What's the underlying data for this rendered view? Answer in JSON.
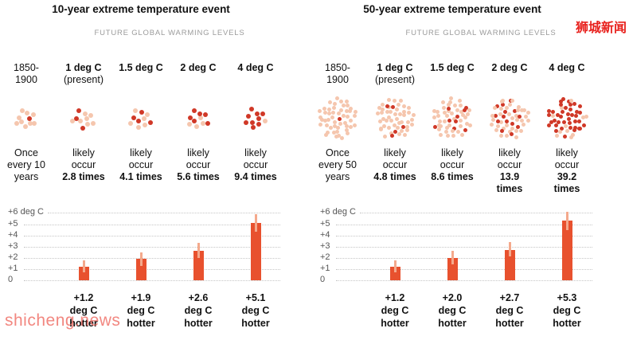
{
  "watermarks": {
    "bottom_left": "shicheng.news",
    "top_right": "狮城新闻"
  },
  "colors": {
    "bar": "#e8512e",
    "whisker": "#f4a98c",
    "dot_light": "#f5c6ae",
    "dot_dark": "#d03827",
    "grid": "#c6c6c6",
    "title": "#111111",
    "warming_label": "#9b9b9b",
    "axis_text": "#555555",
    "watermark_pink": "#ef6a61",
    "watermark_red": "#e8211d"
  },
  "axis": {
    "labels": [
      "+6 deg C",
      "+5",
      "+4",
      "+3",
      "+2",
      "+1",
      "0"
    ],
    "values": [
      6,
      5,
      4,
      3,
      2,
      1,
      0
    ],
    "ylim": [
      0,
      6
    ]
  },
  "chart_data": [
    {
      "type": "bar",
      "title": "10-year extreme temperature event",
      "warming_label": "FUTURE GLOBAL WARMING LEVELS",
      "ylabel": "deg C",
      "ylim": [
        0,
        6
      ],
      "columns": [
        {
          "header": [
            "1850-",
            "1900"
          ],
          "header_bold": false,
          "dots_total": 10,
          "dots_dark": 1,
          "freq_lines": [
            "Once",
            "every 10",
            "years"
          ],
          "freq_bold_lines": []
        },
        {
          "header": [
            "1 deg C",
            "(present)"
          ],
          "header_bold": true,
          "dots_total": 10,
          "dots_dark": 3,
          "freq_lines": [
            "likely",
            "occur"
          ],
          "freq_bold_lines": [
            "2.8 times"
          ],
          "bar_value": 1.2,
          "bar_lo": 0.7,
          "bar_hi": 1.8,
          "bar_label": [
            "+1.2",
            "deg C",
            "hotter"
          ]
        },
        {
          "header": [
            "1.5 deg C"
          ],
          "header_bold": true,
          "dots_total": 10,
          "dots_dark": 4,
          "freq_lines": [
            "likely",
            "occur"
          ],
          "freq_bold_lines": [
            "4.1 times"
          ],
          "bar_value": 1.9,
          "bar_lo": 1.3,
          "bar_hi": 2.5,
          "bar_label": [
            "+1.9",
            "deg C",
            "hotter"
          ]
        },
        {
          "header": [
            "2 deg C"
          ],
          "header_bold": true,
          "dots_total": 10,
          "dots_dark": 6,
          "freq_lines": [
            "likely",
            "occur"
          ],
          "freq_bold_lines": [
            "5.6 times"
          ],
          "bar_value": 2.6,
          "bar_lo": 2.0,
          "bar_hi": 3.3,
          "bar_label": [
            "+2.6",
            "deg C",
            "hotter"
          ]
        },
        {
          "header": [
            "4 deg C"
          ],
          "header_bold": true,
          "dots_total": 10,
          "dots_dark": 9,
          "freq_lines": [
            "likely",
            "occur"
          ],
          "freq_bold_lines": [
            "9.4 times"
          ],
          "bar_value": 5.1,
          "bar_lo": 4.3,
          "bar_hi": 5.9,
          "bar_label": [
            "+5.1",
            "deg C",
            "hotter"
          ]
        }
      ]
    },
    {
      "type": "bar",
      "title": "50-year extreme temperature event",
      "warming_label": "FUTURE GLOBAL WARMING LEVELS",
      "ylabel": "deg C",
      "ylim": [
        0,
        6
      ],
      "columns": [
        {
          "header": [
            "1850-",
            "1900"
          ],
          "header_bold": false,
          "dots_total": 50,
          "dots_dark": 1,
          "freq_lines": [
            "Once",
            "every 50",
            "years"
          ],
          "freq_bold_lines": []
        },
        {
          "header": [
            "1 deg C",
            "(present)"
          ],
          "header_bold": true,
          "dots_total": 50,
          "dots_dark": 5,
          "freq_lines": [
            "likely",
            "occur"
          ],
          "freq_bold_lines": [
            "4.8 times"
          ],
          "bar_value": 1.2,
          "bar_lo": 0.7,
          "bar_hi": 1.8,
          "bar_label": [
            "+1.2",
            "deg C",
            "hotter"
          ]
        },
        {
          "header": [
            "1.5 deg C"
          ],
          "header_bold": true,
          "dots_total": 50,
          "dots_dark": 9,
          "freq_lines": [
            "likely",
            "occur"
          ],
          "freq_bold_lines": [
            "8.6 times"
          ],
          "bar_value": 2.0,
          "bar_lo": 1.4,
          "bar_hi": 2.6,
          "bar_label": [
            "+2.0",
            "deg C",
            "hotter"
          ]
        },
        {
          "header": [
            "2 deg C"
          ],
          "header_bold": true,
          "dots_total": 50,
          "dots_dark": 14,
          "freq_lines": [
            "likely",
            "occur"
          ],
          "freq_bold_lines": [
            "13.9",
            "times"
          ],
          "bar_value": 2.7,
          "bar_lo": 2.1,
          "bar_hi": 3.4,
          "bar_label": [
            "+2.7",
            "deg C",
            "hotter"
          ]
        },
        {
          "header": [
            "4 deg C"
          ],
          "header_bold": true,
          "dots_total": 50,
          "dots_dark": 39,
          "freq_lines": [
            "likely",
            "occur"
          ],
          "freq_bold_lines": [
            "39.2",
            "times"
          ],
          "bar_value": 5.3,
          "bar_lo": 4.5,
          "bar_hi": 6.1,
          "bar_label": [
            "+5.3",
            "deg C",
            "hotter"
          ]
        }
      ]
    }
  ]
}
